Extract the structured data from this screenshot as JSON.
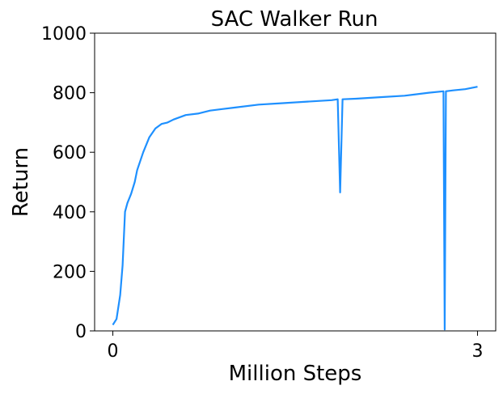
{
  "chart_data": {
    "type": "line",
    "title": "SAC Walker Run",
    "xlabel": "Million Steps",
    "ylabel": "Return",
    "xlim": [
      -0.15,
      3.15
    ],
    "ylim": [
      0,
      1000
    ],
    "x_ticks": [
      0,
      3
    ],
    "x_tick_labels": [
      "0",
      "3"
    ],
    "y_ticks": [
      0,
      200,
      400,
      600,
      800,
      1000
    ],
    "y_tick_labels": [
      "0",
      "200",
      "400",
      "600",
      "800",
      "1000"
    ],
    "grid": false,
    "legend": "none",
    "line_color": "#1E90FF",
    "series": [
      {
        "x": [
          0.0,
          0.03,
          0.06,
          0.08,
          0.1,
          0.12,
          0.15,
          0.18,
          0.2,
          0.25,
          0.3,
          0.35,
          0.4,
          0.45,
          0.5,
          0.6,
          0.7,
          0.8,
          0.9,
          1.0,
          1.2,
          1.4,
          1.6,
          1.8,
          1.85,
          1.87,
          1.89,
          2.0,
          2.2,
          2.4,
          2.6,
          2.72,
          2.73,
          2.74,
          2.8,
          2.9,
          3.0
        ],
        "y": [
          20,
          40,
          120,
          220,
          400,
          430,
          460,
          500,
          540,
          600,
          650,
          680,
          695,
          700,
          710,
          725,
          730,
          740,
          745,
          750,
          760,
          765,
          770,
          775,
          778,
          465,
          778,
          780,
          785,
          790,
          800,
          805,
          5,
          805,
          808,
          812,
          820
        ]
      }
    ]
  }
}
